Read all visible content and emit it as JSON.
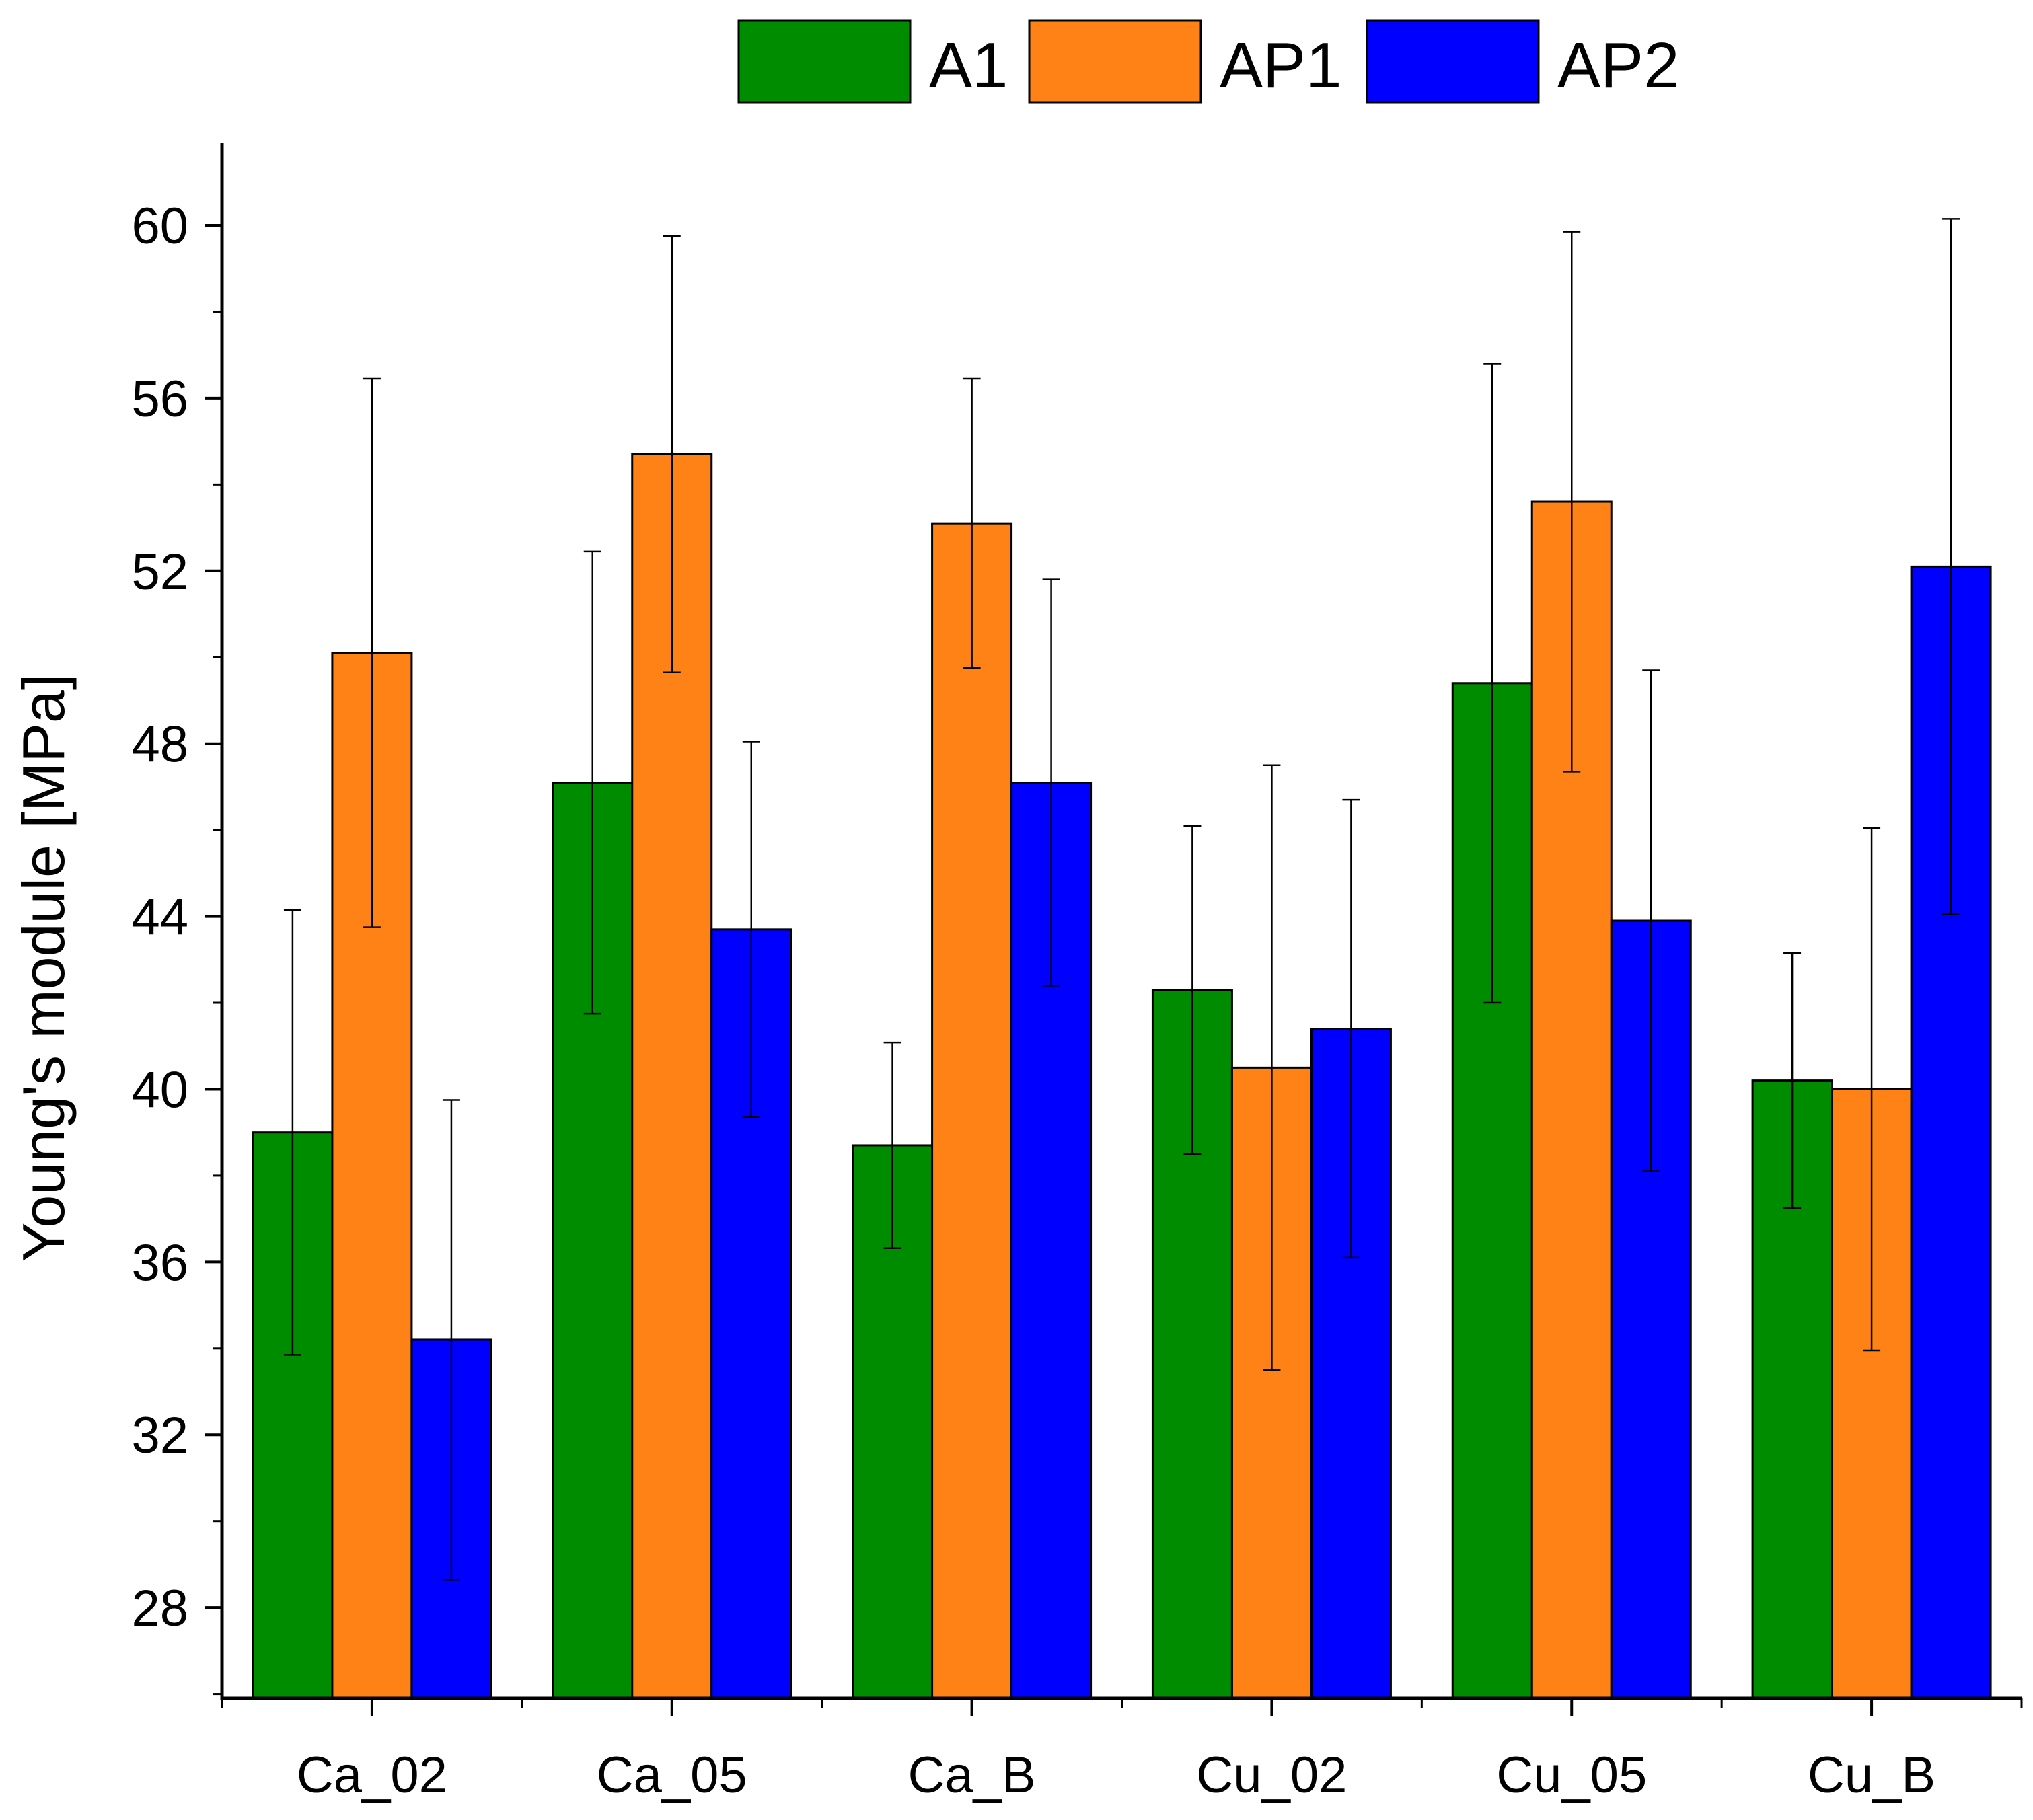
{
  "chart_data": {
    "type": "bar",
    "title": "",
    "xlabel": "",
    "ylabel": "Young's module [MPa]",
    "ylim": [
      25.9,
      61.9
    ],
    "yticks": [
      28,
      32,
      36,
      40,
      44,
      48,
      52,
      56,
      60
    ],
    "ytick_labels": [
      "28",
      "32",
      "36",
      "40",
      "44",
      "48",
      "52",
      "56",
      "60"
    ],
    "categories": [
      "Ca_02",
      "Ca_05",
      "Ca_B",
      "Cu_02",
      "Cu_05",
      "Cu_B"
    ],
    "series": [
      {
        "name": "A1",
        "color": "#008c00",
        "values": [
          39.0,
          47.1,
          38.7,
          42.3,
          49.4,
          40.2
        ],
        "errors": [
          5.15,
          5.35,
          2.38,
          3.8,
          7.4,
          2.95
        ]
      },
      {
        "name": "AP1",
        "color": "#ff8216",
        "values": [
          50.1,
          54.7,
          53.1,
          40.5,
          53.6,
          40.0
        ],
        "errors": [
          6.35,
          5.05,
          3.35,
          7.0,
          6.25,
          6.05
        ]
      },
      {
        "name": "AP2",
        "color": "#0000ff",
        "values": [
          34.2,
          43.7,
          47.1,
          41.4,
          43.9,
          52.1
        ],
        "errors": [
          5.55,
          4.35,
          4.7,
          5.3,
          5.8,
          8.05
        ]
      }
    ],
    "legend": {
      "placement": "top-center"
    },
    "grid": false
  }
}
